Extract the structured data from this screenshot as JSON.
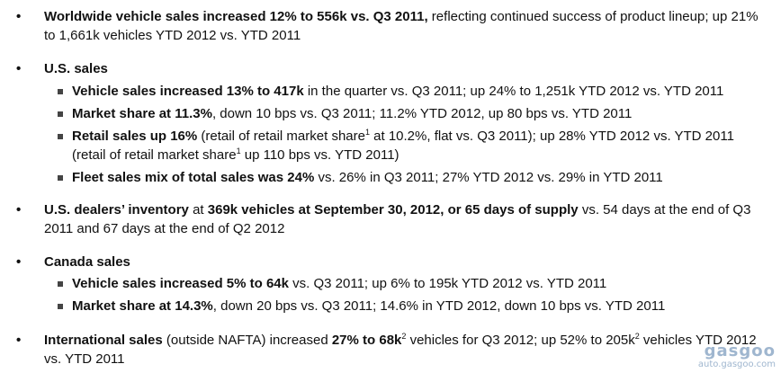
{
  "bullets": {
    "worldwide": {
      "bold": "Worldwide vehicle sales increased 12% to 556k vs. Q3 2011,",
      "rest": " reflecting continued success of product lineup; up 21% to 1,661k vehicles YTD 2012 vs. YTD 2011"
    },
    "us_sales": {
      "heading": "U.S. sales",
      "sub": [
        {
          "bold": "Vehicle sales increased 13% to 417k",
          "rest": " in the quarter vs. Q3 2011; up 24% to 1,251k YTD 2012 vs. YTD 2011"
        },
        {
          "bold": "Market share at 11.3%",
          "rest": ", down 10 bps vs. Q3 2011; 11.2% YTD 2012, up 80 bps vs. YTD 2011"
        },
        {
          "bold": "Retail sales up 16%",
          "r1": " (retail of retail market share",
          "sup1": "1",
          "r2": " at 10.2%, flat vs. Q3 2011); up 28%  YTD 2012 vs. YTD 2011 (retail of retail market share",
          "sup2": "1",
          "r3": " up 110 bps vs. YTD 2011)"
        },
        {
          "bold": "Fleet sales mix of total sales was 24%",
          "rest": " vs. 26% in Q3 2011; 27% YTD 2012 vs. 29% in YTD 2011"
        }
      ]
    },
    "dealers": {
      "bold1": "U.S. dealers’ inventory",
      "mid": " at ",
      "bold2": "369k vehicles at September 30, 2012, or 65 days of supply",
      "rest": " vs. 54 days at the end of Q3 2011 and 67 days at the end of Q2 2012"
    },
    "canada": {
      "heading": "Canada sales",
      "sub": [
        {
          "bold": "Vehicle sales increased 5% to 64k",
          "rest": " vs. Q3 2011; up 6% to 195k YTD 2012 vs. YTD 2011"
        },
        {
          "bold": "Market share at 14.3%",
          "rest": ", down 20 bps vs. Q3 2011; 14.6% in YTD 2012, down 10 bps vs. YTD 2011"
        }
      ]
    },
    "international": {
      "bold1": "International sales",
      "mid1": " (outside NAFTA) increased ",
      "bold2": "27% to 68k",
      "sup1": "2",
      "mid2": " vehicles for Q3 2012; up 52% to 205k",
      "sup2": "2",
      "rest": " vehicles YTD 2012 vs. YTD 2011"
    }
  },
  "watermark": {
    "logo": "gasgoo",
    "url": "auto.gasgoo.com"
  },
  "glyphs": {
    "bullet": "•"
  }
}
